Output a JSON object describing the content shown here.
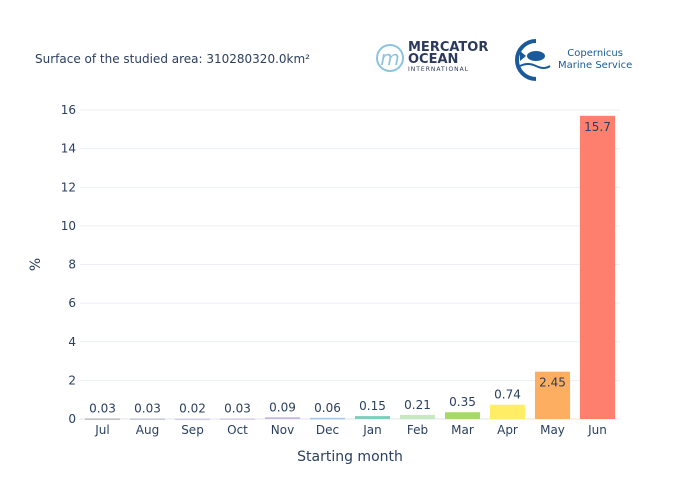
{
  "header": {
    "surface_text": "Surface of the studied area: 310280320.0km²",
    "logo_mercator": {
      "line1": "MERCATOR",
      "line2": "OCEAN",
      "line3": "INTERNATIONAL"
    },
    "logo_copernicus": {
      "line1": "Copernicus",
      "line2": "Marine Service"
    }
  },
  "chart_data": {
    "type": "bar",
    "categories": [
      "Jul",
      "Aug",
      "Sep",
      "Oct",
      "Nov",
      "Dec",
      "Jan",
      "Feb",
      "Mar",
      "Apr",
      "May",
      "Jun"
    ],
    "values": [
      0.03,
      0.03,
      0.02,
      0.03,
      0.09,
      0.06,
      0.15,
      0.21,
      0.35,
      0.74,
      2.45,
      15.7
    ],
    "labels": [
      "0.03",
      "0.03",
      "0.02",
      "0.03",
      "0.09",
      "0.06",
      "0.15",
      "0.21",
      "0.35",
      "0.74",
      "2.45",
      "15.7"
    ],
    "colors": [
      "#bdbdbd",
      "#c8c8d8",
      "#d0d0e0",
      "#d8d0e8",
      "#c9b8e0",
      "#a8c8e8",
      "#7fcdbb",
      "#c7e9c0",
      "#a6d96a",
      "#ffee65",
      "#fdae61",
      "#ff7f6e"
    ],
    "xlabel": "Starting month",
    "ylabel": "%",
    "ylim": [
      0,
      16.4
    ],
    "yticks": [
      0,
      2,
      4,
      6,
      8,
      10,
      12,
      14,
      16
    ],
    "grid": true
  }
}
